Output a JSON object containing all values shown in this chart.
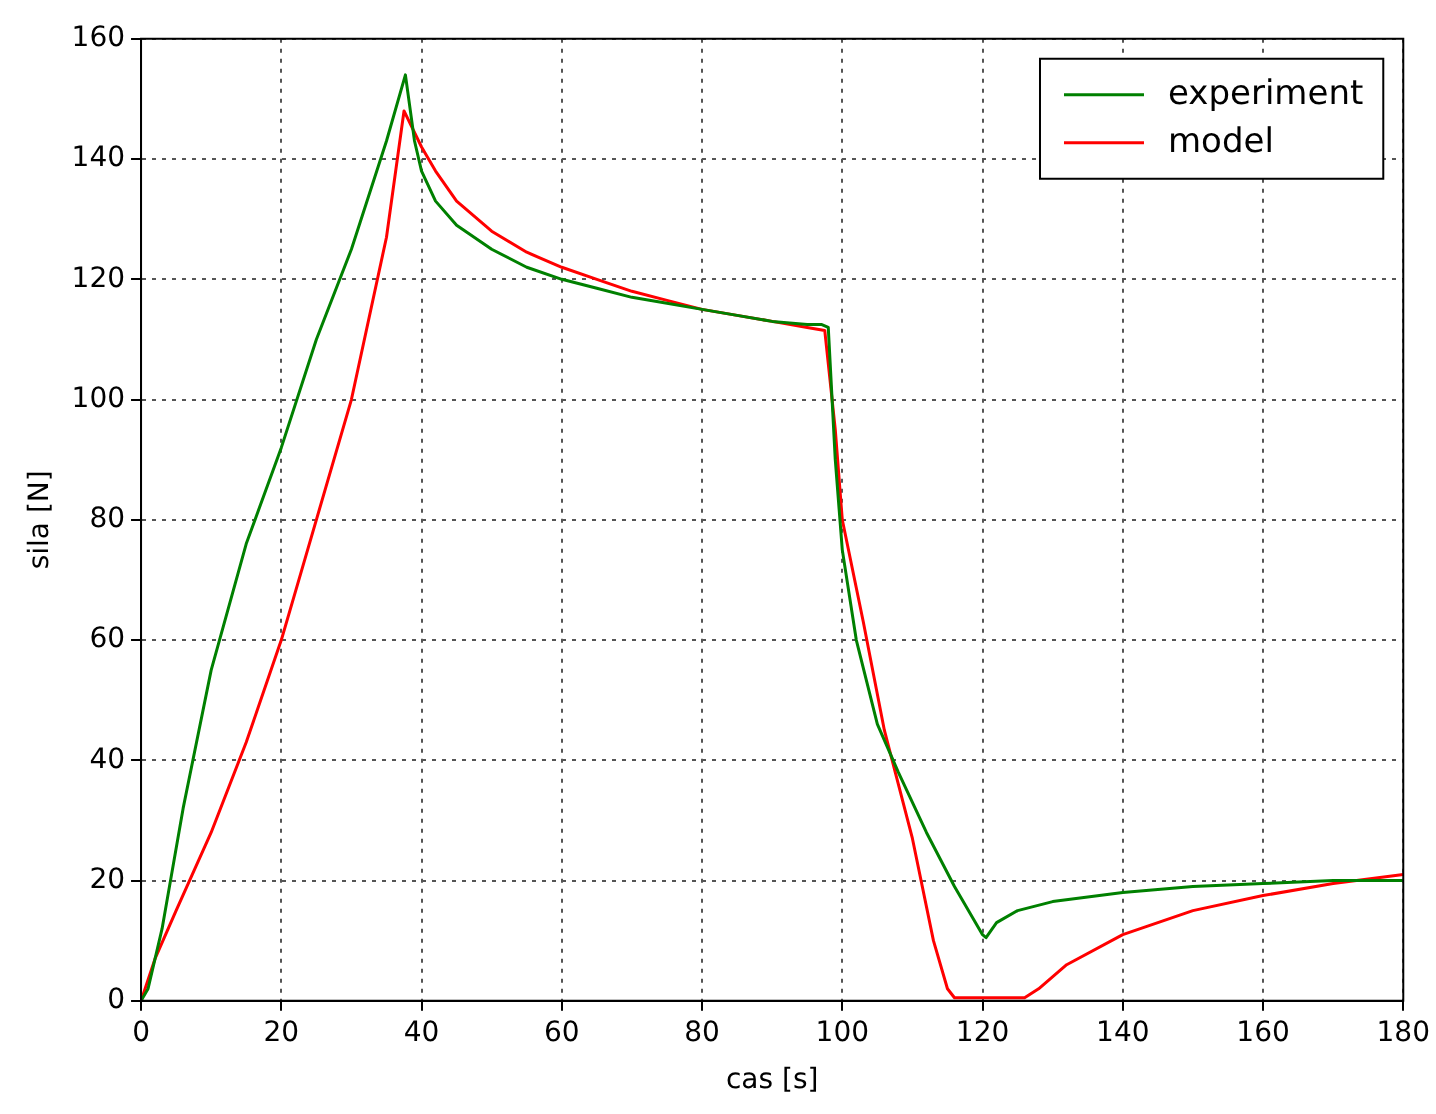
{
  "chart_data": {
    "type": "line",
    "xlabel": "cas [s]",
    "ylabel": "sila [N]",
    "xlim": [
      0,
      180
    ],
    "xticks": [
      0,
      20,
      40,
      60,
      80,
      100,
      120,
      140,
      160,
      180
    ],
    "ylim": [
      0,
      160
    ],
    "yticks": [
      0,
      20,
      40,
      60,
      80,
      100,
      120,
      140,
      160
    ],
    "grid": true,
    "legend": "top right",
    "marker": "none",
    "line_style": "solid",
    "series": [
      {
        "name": "experiment",
        "color": "#008000",
        "x": [
          0,
          1,
          3,
          6,
          10,
          15,
          20,
          25,
          30,
          35,
          37.7,
          39,
          40,
          42,
          45,
          50,
          55,
          60,
          65,
          70,
          75,
          80,
          85,
          90,
          95,
          97,
          98,
          99,
          100,
          102,
          105,
          108,
          112,
          116,
          120,
          120.5,
          122,
          125,
          130,
          140,
          150,
          160,
          170,
          180
        ],
        "values": [
          0,
          2,
          12,
          32,
          55,
          76,
          92,
          110,
          125,
          143,
          154,
          143,
          138,
          133,
          129,
          125,
          122,
          120,
          118.5,
          117,
          116,
          115,
          114,
          113,
          112.5,
          112.5,
          112,
          90,
          75,
          60,
          46,
          38,
          28,
          19,
          11,
          10.5,
          13,
          15,
          16.5,
          18,
          19,
          19.5,
          20,
          20
        ]
      },
      {
        "name": "model",
        "color": "#ff0000",
        "x": [
          0,
          2,
          5,
          10,
          15,
          20,
          25,
          30,
          35,
          37.5,
          40,
          42,
          45,
          50,
          55,
          60,
          65,
          70,
          75,
          80,
          85,
          90,
          95,
          97.5,
          99,
          100,
          103,
          106,
          110,
          113,
          115,
          116,
          120,
          126,
          128,
          132,
          140,
          150,
          160,
          170,
          180
        ],
        "values": [
          0,
          7,
          15,
          28,
          43,
          60,
          80,
          100,
          127,
          148,
          142,
          138,
          133,
          128,
          124.5,
          122,
          120,
          118,
          116.5,
          115,
          114,
          113,
          112,
          111.5,
          95,
          80,
          63,
          45,
          27,
          10,
          2,
          0.5,
          0.5,
          0.5,
          2,
          6,
          11,
          15,
          17.5,
          19.5,
          21
        ]
      }
    ]
  }
}
